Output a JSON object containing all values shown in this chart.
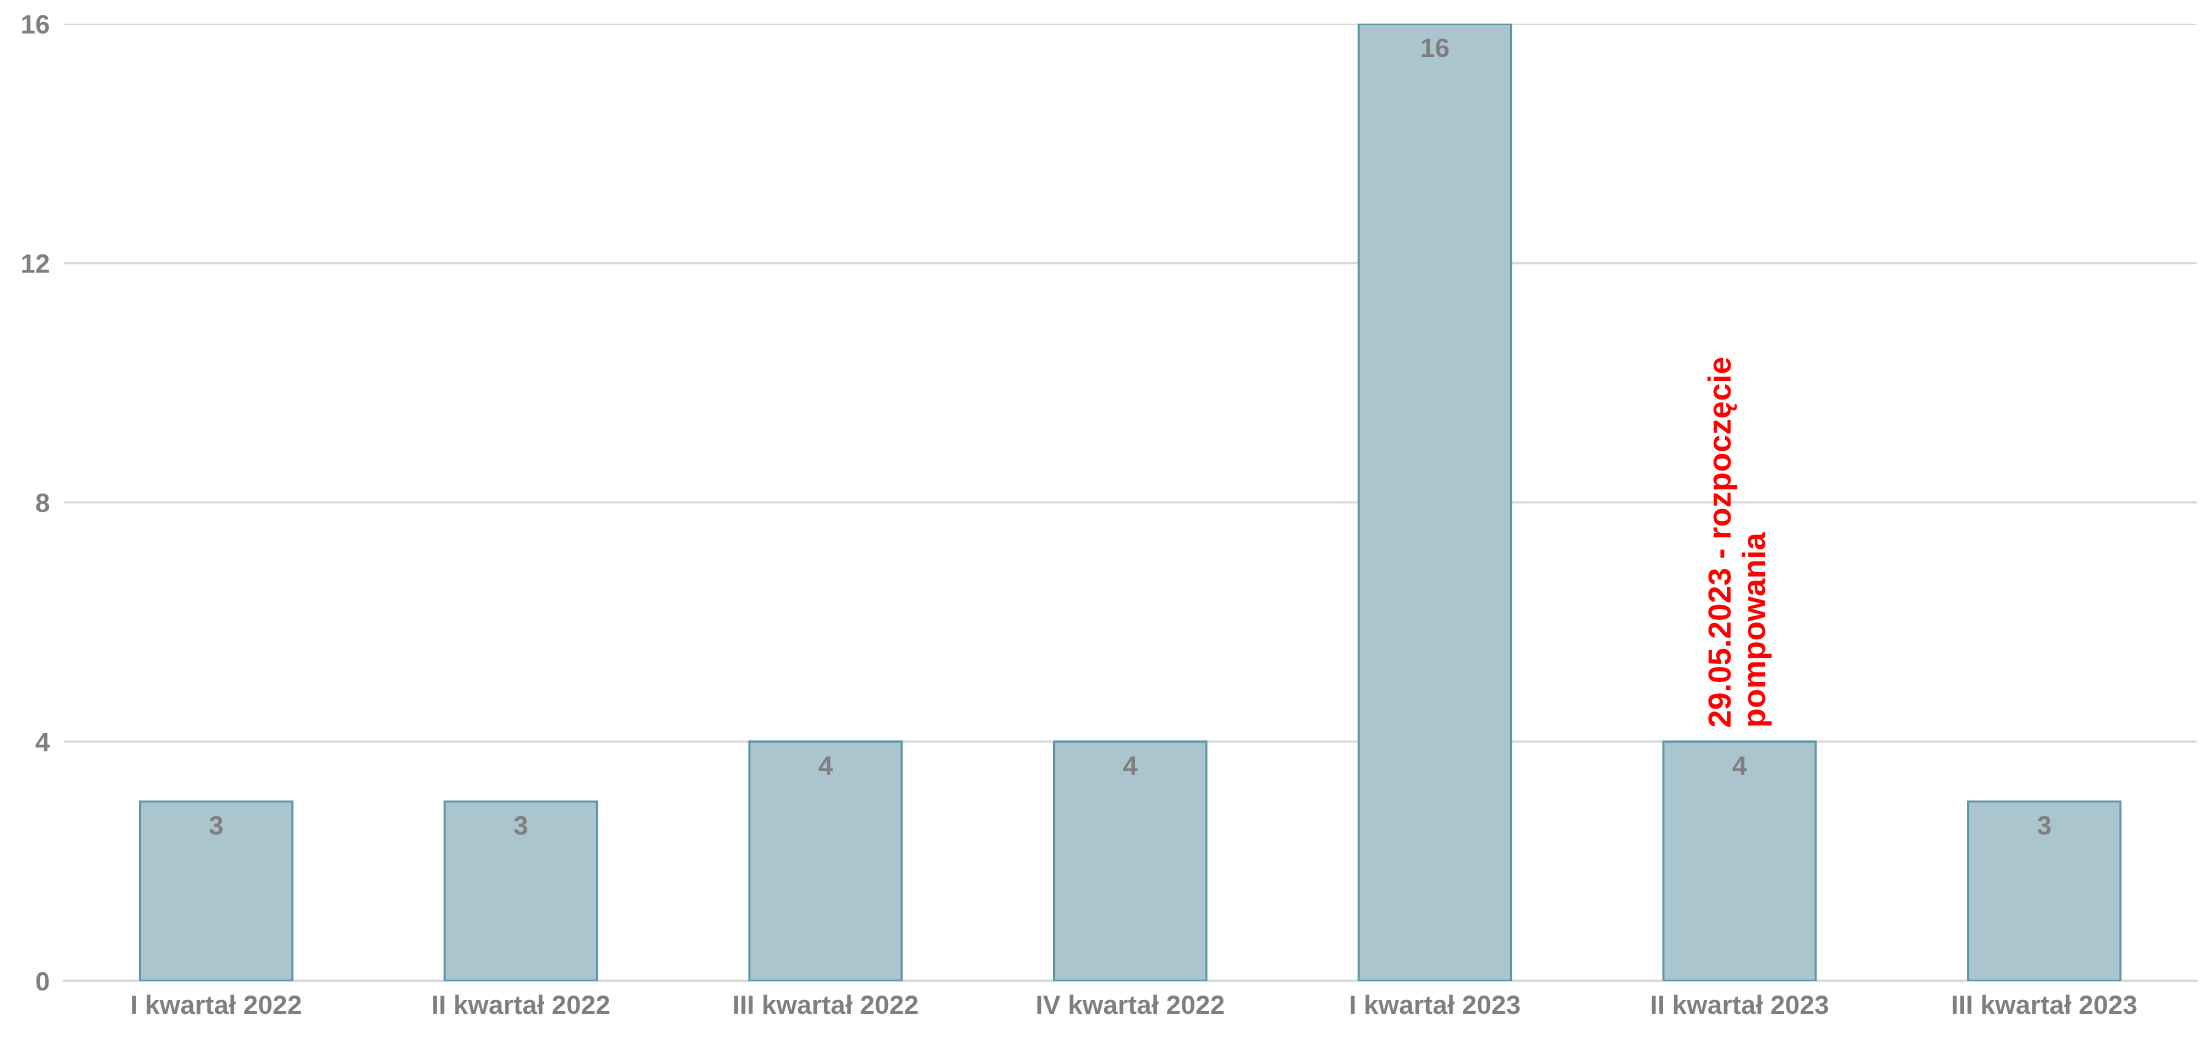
{
  "chart_data": {
    "type": "bar",
    "categories": [
      "I kwartał 2022",
      "II kwartał 2022",
      "III kwartał 2022",
      "IV kwartał 2022",
      "I kwartał 2023",
      "II kwartał 2023",
      "III kwartał 2023"
    ],
    "values": [
      3,
      3,
      4,
      4,
      16,
      4,
      3
    ],
    "color": "#abc5cf",
    "ylim": [
      0,
      16
    ],
    "yticks": [
      0,
      4,
      8,
      12,
      16
    ],
    "grid": "y",
    "data_labels": true,
    "annotations": [
      {
        "text": "29.05.2023 - rozpoczęcie\npompowania",
        "x": "II kwartał 2023",
        "y": 4
      }
    ]
  }
}
